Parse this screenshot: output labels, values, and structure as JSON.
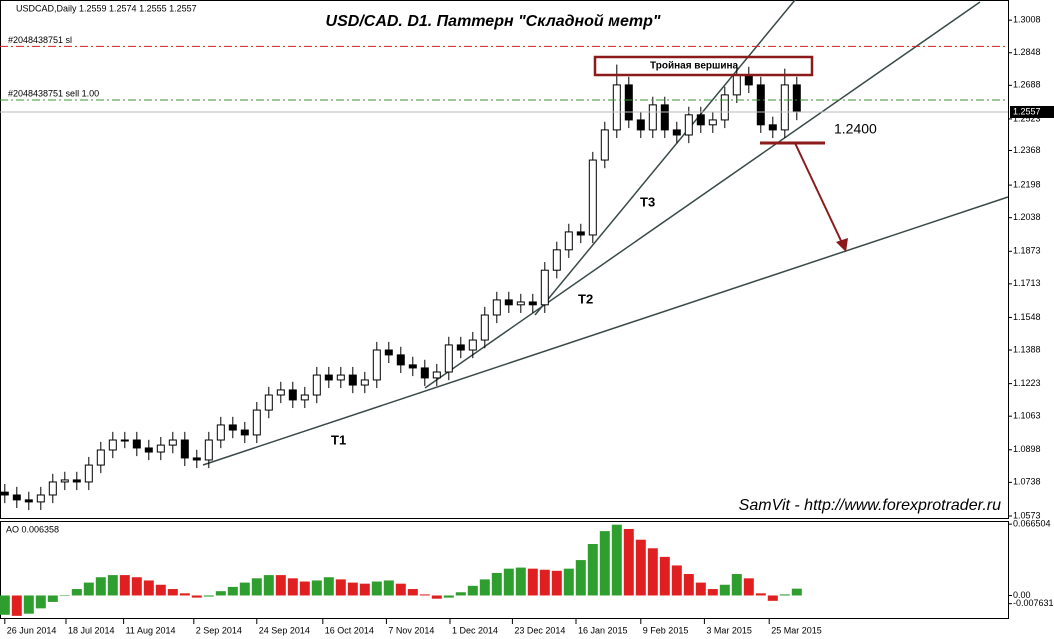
{
  "header": "USDCAD,Daily  1.2559 1.2574 1.2555 1.2557",
  "chart_data": [
    {
      "type": "candlestick",
      "title": "USD/CAD. D1. Паттерн \"Складной метр\"",
      "pattern_label": "Тройная вершина",
      "target_label": "1.2400",
      "trend_labels": [
        "T1",
        "T2",
        "T3"
      ],
      "watermark": "SamVit - http://www.forexprotrader.ru",
      "up_color": "#ffffff",
      "down_color": "#000000",
      "open": [
        1.069,
        1.0676,
        1.0652,
        1.0642,
        1.0676,
        1.074,
        1.075,
        1.074,
        1.0823,
        1.0897,
        1.0946,
        1.0946,
        1.0907,
        1.0887,
        1.0921,
        1.0946,
        1.0858,
        1.0848,
        1.0946,
        1.102,
        1.0995,
        1.0971,
        1.1093,
        1.1167,
        1.1192,
        1.1143,
        1.1167,
        1.1265,
        1.1241,
        1.1265,
        1.1216,
        1.1241,
        1.1388,
        1.1364,
        1.1315,
        1.13,
        1.1251,
        1.128,
        1.1413,
        1.1388,
        1.1437,
        1.156,
        1.1634,
        1.161,
        1.1624,
        1.161,
        1.178,
        1.188,
        1.1968,
        1.1953,
        1.2321,
        1.2469,
        1.269,
        1.2518,
        1.2469,
        1.2592,
        1.2469,
        1.2444,
        1.2543,
        1.2494,
        1.2518,
        1.2641,
        1.2739,
        1.269,
        1.2494,
        1.2469,
        1.269
      ],
      "high": [
        1.073,
        1.0716,
        1.0692,
        1.0716,
        1.078,
        1.079,
        1.079,
        1.0863,
        1.0937,
        1.0986,
        1.0986,
        1.0986,
        1.0947,
        1.0961,
        1.0986,
        1.0986,
        1.0898,
        1.0986,
        1.106,
        1.106,
        1.1035,
        1.1133,
        1.1207,
        1.1232,
        1.1232,
        1.1207,
        1.1305,
        1.1305,
        1.1305,
        1.1305,
        1.1281,
        1.1428,
        1.1428,
        1.1404,
        1.1355,
        1.134,
        1.132,
        1.1453,
        1.1453,
        1.1477,
        1.16,
        1.1674,
        1.1674,
        1.1664,
        1.1664,
        1.182,
        1.192,
        1.2008,
        1.2008,
        1.2361,
        1.2509,
        1.279,
        1.273,
        1.2558,
        1.2632,
        1.2632,
        1.2509,
        1.2583,
        1.2583,
        1.2558,
        1.2681,
        1.279,
        1.2779,
        1.273,
        1.2534,
        1.277,
        1.273
      ],
      "low": [
        1.0636,
        1.0612,
        1.0602,
        1.0602,
        1.0636,
        1.07,
        1.07,
        1.07,
        1.0783,
        1.0857,
        1.0906,
        1.0867,
        1.0847,
        1.0847,
        1.0881,
        1.0818,
        1.0808,
        1.0808,
        1.0906,
        1.0955,
        1.0931,
        1.0931,
        1.1053,
        1.1127,
        1.1103,
        1.1103,
        1.1127,
        1.1201,
        1.1201,
        1.1176,
        1.1176,
        1.1201,
        1.1324,
        1.1275,
        1.126,
        1.1211,
        1.1211,
        1.124,
        1.1348,
        1.1348,
        1.1397,
        1.152,
        1.157,
        1.157,
        1.157,
        1.157,
        1.174,
        1.184,
        1.1913,
        1.1913,
        1.2281,
        1.2429,
        1.2478,
        1.2429,
        1.2429,
        1.2429,
        1.2404,
        1.2404,
        1.2454,
        1.2454,
        1.2478,
        1.2601,
        1.265,
        1.2454,
        1.2429,
        1.2429,
        1.2517
      ],
      "close": [
        1.0676,
        1.0652,
        1.0642,
        1.0676,
        1.074,
        1.075,
        1.074,
        1.0823,
        1.0897,
        1.0946,
        1.0946,
        1.0907,
        1.0887,
        1.0921,
        1.0946,
        1.0858,
        1.0848,
        1.0946,
        1.102,
        1.0995,
        1.0971,
        1.1093,
        1.1167,
        1.1192,
        1.1143,
        1.1167,
        1.1265,
        1.1241,
        1.1265,
        1.1216,
        1.1241,
        1.1388,
        1.1364,
        1.1315,
        1.13,
        1.1251,
        1.128,
        1.1413,
        1.1388,
        1.1437,
        1.156,
        1.1634,
        1.161,
        1.1624,
        1.161,
        1.178,
        1.188,
        1.1968,
        1.1953,
        1.2321,
        1.2469,
        1.269,
        1.2518,
        1.2469,
        1.2592,
        1.2469,
        1.2444,
        1.2543,
        1.2494,
        1.2518,
        1.2641,
        1.2739,
        1.269,
        1.2494,
        1.2469,
        1.269,
        1.2557
      ],
      "xlim": [
        -0.4,
        83.6
      ],
      "ylim": [
        1.0563,
        1.3107
      ],
      "yticks": [
        1.3008,
        1.2848,
        1.2688,
        1.2523,
        1.2368,
        1.2198,
        1.2038,
        1.1873,
        1.1713,
        1.1548,
        1.1388,
        1.1223,
        1.1063,
        1.0898,
        1.0738,
        1.0573
      ],
      "xticks": [
        {
          "value": 0,
          "label": "26 Jun 2014"
        },
        {
          "value": 5.1,
          "label": "18 Jul 2014"
        },
        {
          "value": 9.9,
          "label": "11 Aug 2014"
        },
        {
          "value": 15.75,
          "label": "2 Sep 2014"
        },
        {
          "value": 21,
          "label": "24 Sep 2014"
        },
        {
          "value": 26.5,
          "label": "16 Oct 2014"
        },
        {
          "value": 31.8,
          "label": "7 Nov 2014"
        },
        {
          "value": 37.1,
          "label": "1 Dec 2014"
        },
        {
          "value": 42.3,
          "label": "23 Dec 2014"
        },
        {
          "value": 47.6,
          "label": "16 Jan 2015"
        },
        {
          "value": 53,
          "label": "9 Feb 2015"
        },
        {
          "value": 58.3,
          "label": "3 Mar 2015"
        },
        {
          "value": 63.7,
          "label": "25 Mar 2015"
        }
      ],
      "last_price": 1.2557,
      "orders": [
        {
          "label": "#2048438751 sl",
          "price": 1.2879,
          "color": "#cc2222"
        },
        {
          "label": "#2048438751 sell 1.00",
          "price": 1.2616,
          "color": "#339933"
        }
      ]
    },
    {
      "type": "bar",
      "title": "AO 0.006358",
      "up_color": "#2e9e2e",
      "down_color": "#e02020",
      "values": [
        -0.018,
        -0.019,
        -0.017,
        -0.012,
        -0.006,
        0.0,
        0.006,
        0.012,
        0.017,
        0.019,
        0.019,
        0.017,
        0.014,
        0.01,
        0.006,
        0.002,
        -0.002,
        -0.001,
        0.004,
        0.008,
        0.012,
        0.016,
        0.019,
        0.019,
        0.016,
        0.013,
        0.014,
        0.017,
        0.015,
        0.012,
        0.011,
        0.013,
        0.014,
        0.011,
        0.006,
        0.001,
        -0.003,
        -0.002,
        0.003,
        0.009,
        0.015,
        0.021,
        0.025,
        0.026,
        0.025,
        0.024,
        0.023,
        0.025,
        0.033,
        0.048,
        0.06,
        0.066,
        0.062,
        0.052,
        0.044,
        0.036,
        0.028,
        0.02,
        0.012,
        0.006,
        0.01,
        0.02,
        0.016,
        0.002,
        -0.005,
        0.001,
        0.006358
      ],
      "ylim": [
        -0.021,
        0.0685
      ],
      "yticks": [
        0.066504,
        {
          "value": 0,
          "label": "0.00"
        },
        -0.007631
      ]
    }
  ]
}
